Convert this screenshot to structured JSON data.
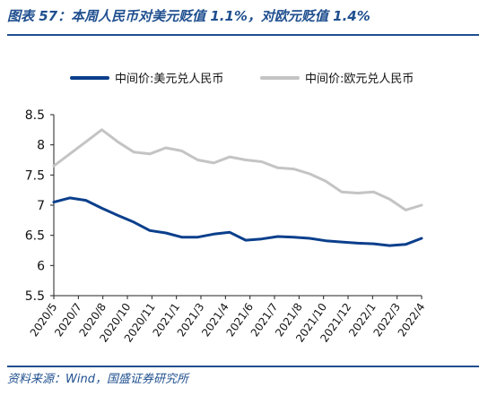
{
  "header": {
    "title": "图表 57：本周人民币对美元贬值 1.1%，对欧元贬值 1.4%"
  },
  "footer": {
    "source": "资料来源：Wind，国盛证券研究所"
  },
  "colors": {
    "usd": "#0b3f8c",
    "eur": "#c4c4c4",
    "brand": "#1f4f8f"
  },
  "chart_data": {
    "type": "line",
    "title": "",
    "xlabel": "",
    "ylabel": "",
    "ylim": [
      5.5,
      8.5
    ],
    "yticks": [
      "8.5",
      "8",
      "7.5",
      "7",
      "6.5",
      "6",
      "5.5"
    ],
    "grid": false,
    "legend_position": "top",
    "xtick_labels": [
      "2020/5",
      "2020/7",
      "2020/8",
      "2020/10",
      "2020/11",
      "2021/1",
      "2021/3",
      "2021/4",
      "2021/6",
      "2021/7",
      "2021/8",
      "2021/10",
      "2021/12",
      "2022/1",
      "2022/3",
      "2022/4"
    ],
    "x": [
      "2020/5",
      "2020/6",
      "2020/7",
      "2020/8",
      "2020/9",
      "2020/10",
      "2020/11",
      "2020/12",
      "2021/1",
      "2021/2",
      "2021/3",
      "2021/4",
      "2021/5",
      "2021/6",
      "2021/7",
      "2021/8",
      "2021/9",
      "2021/10",
      "2021/11",
      "2021/12",
      "2022/1",
      "2022/2",
      "2022/3",
      "2022/4"
    ],
    "series": [
      {
        "name": "中间价:美元兑人民币",
        "values": [
          7.05,
          7.12,
          7.08,
          6.95,
          6.83,
          6.72,
          6.58,
          6.54,
          6.47,
          6.47,
          6.52,
          6.55,
          6.42,
          6.44,
          6.48,
          6.47,
          6.45,
          6.41,
          6.39,
          6.37,
          6.36,
          6.33,
          6.35,
          6.45
        ]
      },
      {
        "name": "中间价:欧元兑人民币",
        "values": [
          7.65,
          7.85,
          8.05,
          8.25,
          8.05,
          7.88,
          7.85,
          7.95,
          7.9,
          7.75,
          7.7,
          7.8,
          7.75,
          7.72,
          7.62,
          7.6,
          7.52,
          7.4,
          7.22,
          7.2,
          7.22,
          7.1,
          6.92,
          7.0
        ]
      }
    ]
  }
}
